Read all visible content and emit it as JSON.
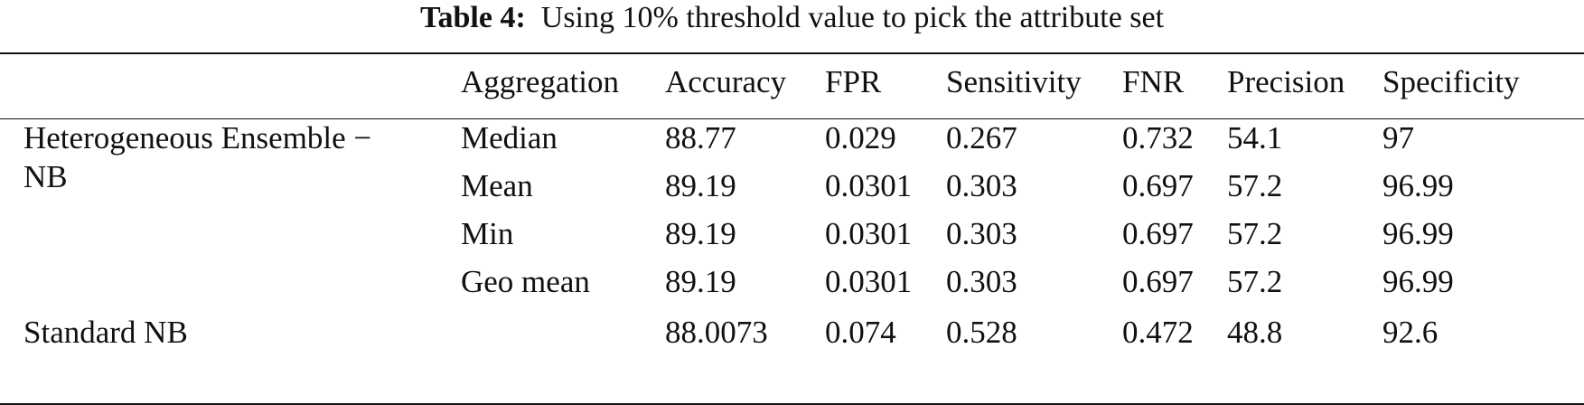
{
  "caption": {
    "label": "Table 4:",
    "text": "Using 10% threshold value to pick the attribute set"
  },
  "headers": [
    "Aggregation",
    "Accuracy",
    "FPR",
    "Sensitivity",
    "FNR",
    "Precision",
    "Specificity"
  ],
  "groups": {
    "hetero_line1": "Heterogeneous Ensemble −",
    "hetero_line2": "NB",
    "standard": "Standard NB"
  },
  "rows": [
    {
      "aggregation": "Median",
      "accuracy": "88.77",
      "fpr": "0.029",
      "sensitivity": "0.267",
      "fnr": "0.732",
      "precision": "54.1",
      "specificity": "97"
    },
    {
      "aggregation": "Mean",
      "accuracy": "89.19",
      "fpr": "0.0301",
      "sensitivity": "0.303",
      "fnr": "0.697",
      "precision": "57.2",
      "specificity": "96.99"
    },
    {
      "aggregation": "Min",
      "accuracy": "89.19",
      "fpr": "0.0301",
      "sensitivity": "0.303",
      "fnr": "0.697",
      "precision": "57.2",
      "specificity": "96.99"
    },
    {
      "aggregation": "Geo mean",
      "accuracy": "89.19",
      "fpr": "0.0301",
      "sensitivity": "0.303",
      "fnr": "0.697",
      "precision": "57.2",
      "specificity": "96.99"
    },
    {
      "aggregation": "",
      "accuracy": "88.0073",
      "fpr": "0.074",
      "sensitivity": "0.528",
      "fnr": "0.472",
      "precision": "48.8",
      "specificity": "92.6"
    }
  ]
}
